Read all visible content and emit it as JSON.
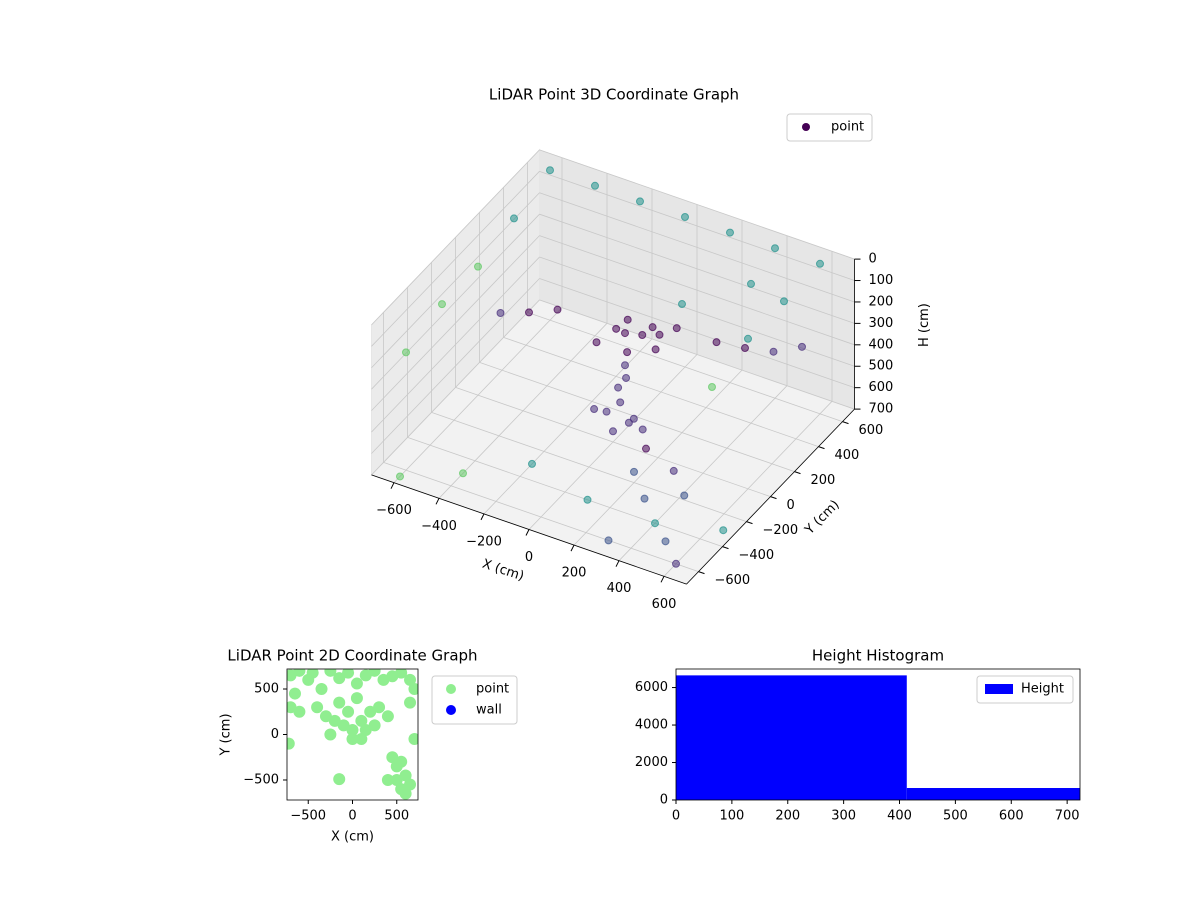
{
  "chart_data": [
    {
      "type": "scatter3d",
      "title": "LiDAR Point 3D Coordinate Graph",
      "xlabel": "X (cm)",
      "ylabel": "Y (cm)",
      "zlabel": "H (cm)",
      "xlim": [
        -700,
        700
      ],
      "ylim": [
        -700,
        700
      ],
      "zlim": [
        0,
        700
      ],
      "z_inverted": true,
      "grid": true,
      "legend": "upper right",
      "xticks": [
        {
          "value": -600,
          "label": "−600"
        },
        {
          "value": -400,
          "label": "−400"
        },
        {
          "value": -200,
          "label": "−200"
        },
        0,
        200,
        400,
        600
      ],
      "yticks": [
        {
          "value": -600,
          "label": "−600"
        },
        {
          "value": -400,
          "label": "−400"
        },
        {
          "value": -200,
          "label": "−200"
        },
        0,
        200,
        400,
        600
      ],
      "zticks": [
        0,
        100,
        200,
        300,
        400,
        500,
        600,
        700
      ],
      "series": [
        {
          "name": "point",
          "color": "#440154",
          "x": [
            -600,
            -400,
            -200,
            0,
            200,
            400,
            600,
            600,
            600,
            600,
            -600,
            -600,
            -600,
            -600,
            200,
            400,
            0,
            50,
            -50,
            100,
            150,
            -100,
            20,
            80,
            -20,
            120,
            0,
            10,
            -20,
            0,
            -50,
            50,
            100,
            -100,
            0,
            60,
            300,
            400,
            500,
            600,
            -300,
            -400,
            -500,
            200,
            300,
            400,
            500,
            100,
            600,
            -200,
            300,
            -400,
            -600,
            200,
            350,
            450,
            650
          ],
          "y": [
            600,
            600,
            600,
            600,
            600,
            600,
            600,
            300,
            0,
            -300,
            300,
            0,
            -300,
            -600,
            200,
            400,
            100,
            150,
            120,
            200,
            250,
            50,
            80,
            180,
            160,
            130,
            100,
            90,
            80,
            60,
            40,
            80,
            60,
            30,
            0,
            20,
            300,
            350,
            400,
            450,
            100,
            50,
            0,
            -200,
            -300,
            -400,
            -500,
            -400,
            -600,
            -300,
            -600,
            -500,
            -650,
            -100,
            -150,
            -250,
            -300
          ],
          "z": [
            0,
            0,
            0,
            0,
            0,
            0,
            0,
            0,
            0,
            50,
            50,
            100,
            100,
            150,
            100,
            50,
            250,
            270,
            260,
            280,
            260,
            300,
            320,
            240,
            230,
            300,
            400,
            450,
            500,
            550,
            600,
            620,
            640,
            600,
            650,
            600,
            300,
            320,
            330,
            300,
            250,
            270,
            280,
            650,
            680,
            700,
            690,
            700,
            700,
            700,
            700,
            700,
            700,
            600,
            620,
            640,
            700
          ],
          "colors": [
            "#21918c",
            "#21918c",
            "#21918c",
            "#21918c",
            "#21918c",
            "#21918c",
            "#21918c",
            "#21918c",
            "#21918c",
            "#5ec962",
            "#21918c",
            "#5ec962",
            "#5ec962",
            "#5ec962",
            "#21918c",
            "#21918c",
            "#440154",
            "#440154",
            "#440154",
            "#440154",
            "#440154",
            "#440154",
            "#440154",
            "#440154",
            "#440154",
            "#440154",
            "#472d7b",
            "#472d7b",
            "#472d7b",
            "#472d7b",
            "#472d7b",
            "#472d7b",
            "#472d7b",
            "#472d7b",
            "#472d7b",
            "#472d7b",
            "#440154",
            "#440154",
            "#472d7b",
            "#472d7b",
            "#440154",
            "#440154",
            "#472d7b",
            "#3b528b",
            "#3b528b",
            "#21918c",
            "#3b528b",
            "#21918c",
            "#472d7b",
            "#21918c",
            "#3b528b",
            "#5ec962",
            "#5ec962",
            "#440154",
            "#472d7b",
            "#3b528b",
            "#21918c"
          ]
        }
      ]
    },
    {
      "type": "scatter",
      "title": "LiDAR Point 2D Coordinate Graph",
      "xlabel": "X (cm)",
      "ylabel": "Y (cm)",
      "xlim": [
        -740,
        740
      ],
      "ylim": [
        -720,
        720
      ],
      "legend": "outside right",
      "xticks": [
        {
          "value": -500,
          "label": "−500"
        },
        0,
        500
      ],
      "yticks": [
        {
          "value": -500,
          "label": "−500"
        },
        0,
        500
      ],
      "series": [
        {
          "name": "point",
          "color": "#90ee90",
          "x": [
            -700,
            -600,
            -500,
            -450,
            -350,
            -250,
            -150,
            -50,
            50,
            150,
            250,
            350,
            450,
            550,
            650,
            700,
            -650,
            -700,
            -600,
            -400,
            -300,
            -200,
            -100,
            0,
            100,
            200,
            300,
            -50,
            150,
            -150,
            50,
            250,
            400,
            -250,
            0,
            100,
            650,
            700,
            -720,
            -150,
            450,
            500,
            550,
            600,
            500,
            550,
            650,
            400,
            600
          ],
          "y": [
            650,
            700,
            600,
            680,
            500,
            700,
            620,
            680,
            560,
            650,
            700,
            600,
            640,
            680,
            600,
            500,
            450,
            300,
            250,
            300,
            200,
            150,
            100,
            50,
            150,
            250,
            300,
            250,
            50,
            350,
            400,
            100,
            200,
            0,
            -50,
            -50,
            350,
            -50,
            -100,
            -490,
            -250,
            -350,
            -300,
            -450,
            -500,
            -600,
            -550,
            -500,
            -650
          ]
        },
        {
          "name": "wall",
          "color": "#0000ff",
          "x": [],
          "y": []
        }
      ]
    },
    {
      "type": "hist",
      "title": "Height Histogram",
      "xlim": [
        0,
        723
      ],
      "ylim": [
        0,
        6990
      ],
      "xticks": [
        0,
        100,
        200,
        300,
        400,
        500,
        600,
        700
      ],
      "yticks": [
        0,
        2000,
        4000,
        6000
      ],
      "legend": "upper right",
      "series": [
        {
          "name": "Height",
          "color": "#0000ff",
          "bins": [
            0,
            413,
            723
          ],
          "counts": [
            6650,
            640
          ]
        }
      ]
    }
  ]
}
